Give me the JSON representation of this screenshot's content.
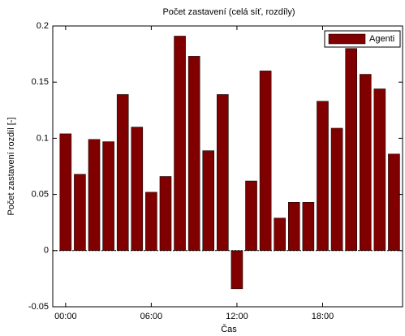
{
  "chart_data": {
    "type": "bar",
    "title": "Počet zastavení (celá síť, rozdíly)",
    "xlabel": "Čas",
    "ylabel": "Počet zastavení rozdíl [-]",
    "x": [
      0,
      1,
      2,
      3,
      4,
      5,
      6,
      7,
      8,
      9,
      10,
      11,
      12,
      13,
      14,
      15,
      16,
      17,
      18,
      19,
      20,
      21,
      22,
      23
    ],
    "series": [
      {
        "name": "Agenti",
        "color": "#800000",
        "values": [
          0.104,
          0.068,
          0.099,
          0.097,
          0.139,
          0.11,
          0.052,
          0.066,
          0.191,
          0.173,
          0.089,
          0.139,
          -0.034,
          0.062,
          0.16,
          0.029,
          0.043,
          0.043,
          0.133,
          0.109,
          0.18,
          0.157,
          0.144,
          0.086
        ]
      }
    ],
    "xlim": [
      -0.9,
      23.6
    ],
    "xticks": [
      {
        "value": 0,
        "label": "00:00"
      },
      {
        "value": 6,
        "label": "06:00"
      },
      {
        "value": 12,
        "label": "12:00"
      },
      {
        "value": 18,
        "label": "18:00"
      }
    ],
    "ylim": [
      -0.05,
      0.2
    ],
    "yticks": [
      -0.05,
      0,
      0.05,
      0.1,
      0.15,
      0.2
    ],
    "legend": "top-right",
    "grid": false
  }
}
